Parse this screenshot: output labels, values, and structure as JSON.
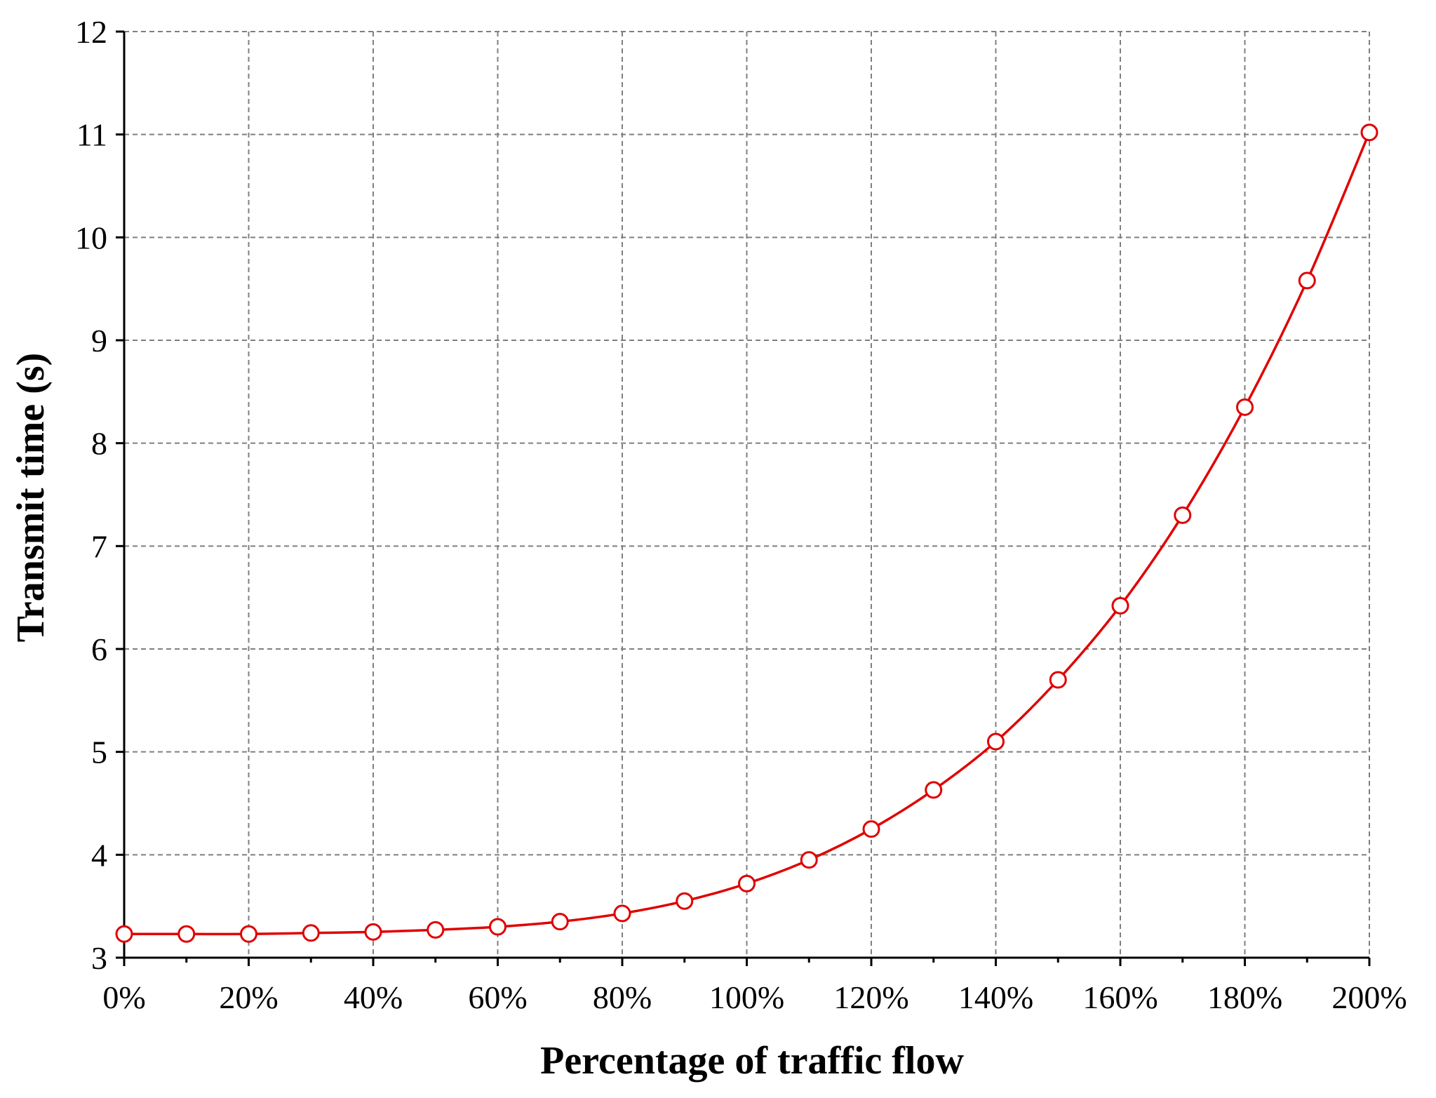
{
  "chart_data": {
    "type": "line",
    "xlabel": "Percentage of traffic flow",
    "ylabel": "Transmit time (s)",
    "x_tick_labels": [
      "0%",
      "20%",
      "40%",
      "60%",
      "80%",
      "100%",
      "120%",
      "140%",
      "160%",
      "180%",
      "200%"
    ],
    "y_tick_labels": [
      "3",
      "4",
      "5",
      "6",
      "7",
      "8",
      "9",
      "10",
      "11",
      "12"
    ],
    "xlim": [
      0,
      200
    ],
    "ylim": [
      3,
      12
    ],
    "grid": true,
    "color": "#e00000",
    "marker": "open-circle",
    "series": [
      {
        "x": [
          0,
          10,
          20,
          30,
          40,
          50,
          60,
          70,
          80,
          90,
          100,
          110,
          120,
          130,
          140,
          150,
          160,
          170,
          180,
          190,
          200
        ],
        "values": [
          3.23,
          3.23,
          3.23,
          3.24,
          3.25,
          3.27,
          3.3,
          3.35,
          3.43,
          3.55,
          3.72,
          3.95,
          4.25,
          4.63,
          5.1,
          5.7,
          6.42,
          7.3,
          8.35,
          9.58,
          11.02
        ]
      }
    ]
  }
}
